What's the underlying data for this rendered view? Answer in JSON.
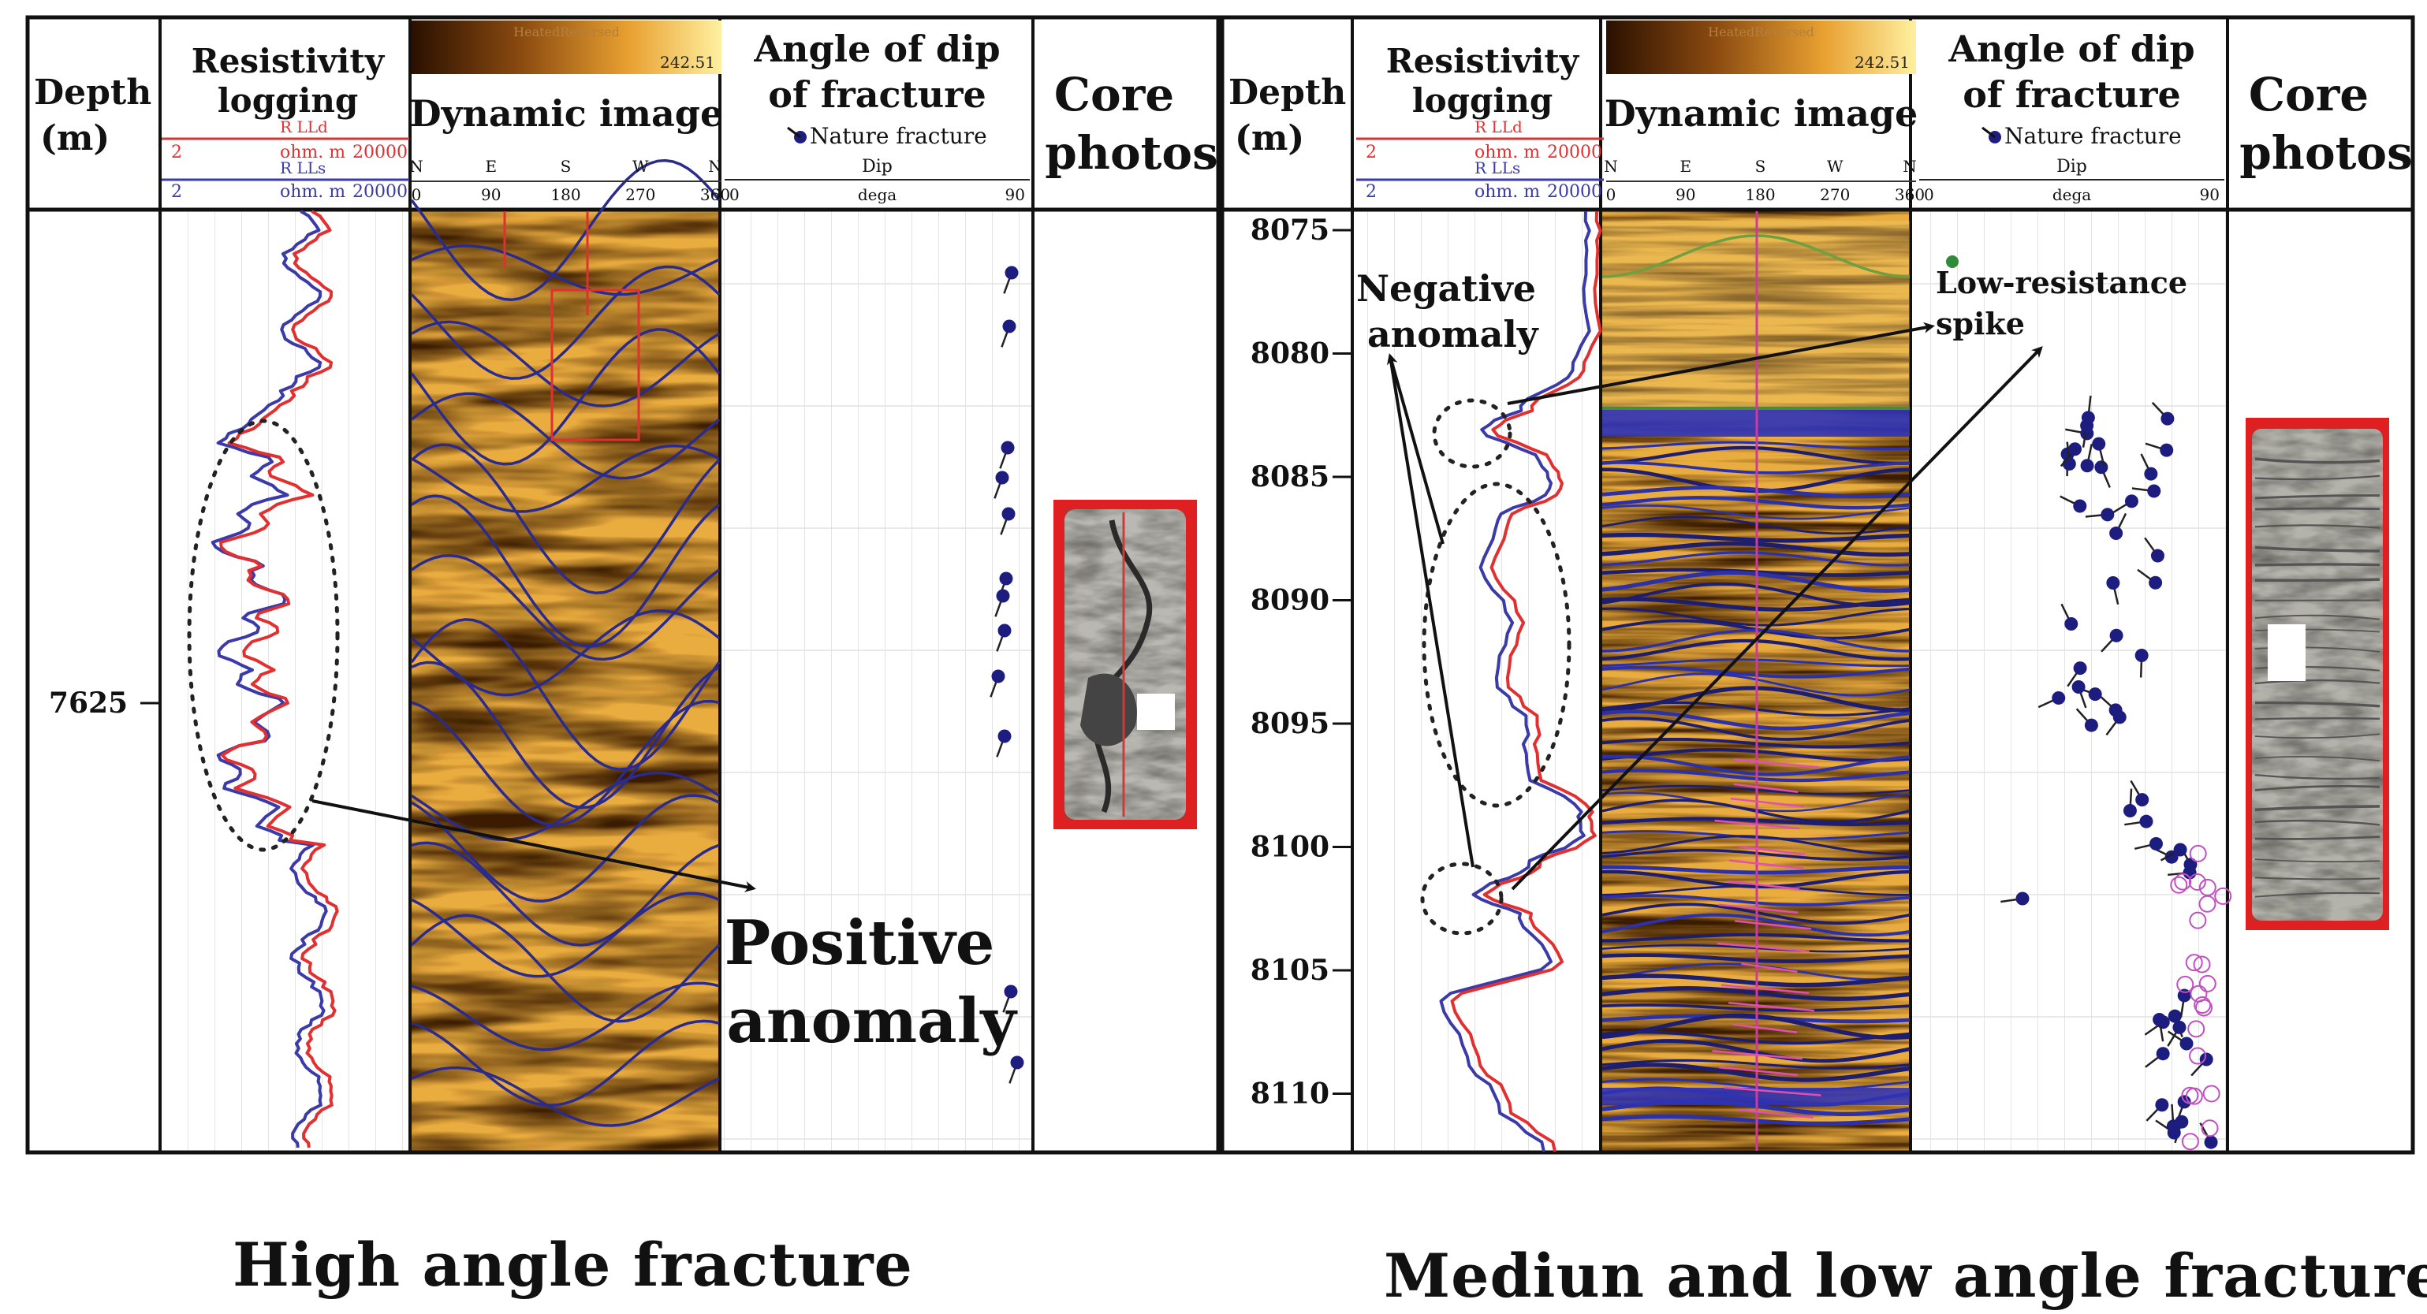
{
  "captions": {
    "left": "High angle fracture",
    "right": "Mediun and low angle fracture"
  },
  "headers": {
    "depth": [
      "Depth",
      "(m)"
    ],
    "resistivity": [
      "Resistivity",
      "logging"
    ],
    "rlld": "R LLd",
    "rlls": "R LLs",
    "ohm_min": "2",
    "ohm_unit": "ohm. m",
    "ohm_max": "20000",
    "dynamic": "Dynamic image",
    "colorbar": "HeatedReversed",
    "colorbar_max": "242.51",
    "compass": [
      "N",
      "E",
      "S",
      "W",
      "N"
    ],
    "compass_deg": [
      "0",
      "90",
      "180",
      "270",
      "360"
    ],
    "dip_title": [
      "Angle of dip",
      "of fracture"
    ],
    "dip_legend": "Nature fracture",
    "dip_label": "Dip",
    "dip_unit": "dega",
    "dip_min": "0",
    "dip_max": "90",
    "core": [
      "Core",
      "photos"
    ]
  },
  "left_depth": "7625",
  "right_depths": [
    "8075",
    "8080",
    "8085",
    "8090",
    "8095",
    "8100",
    "8105",
    "8110"
  ],
  "annotations": {
    "positive": [
      "Positive",
      "anomaly"
    ],
    "negative": [
      "Negative",
      "anomaly"
    ],
    "low_res": [
      "Low-resistance",
      "spike"
    ]
  },
  "colors": {
    "rlld": "#e23030",
    "rlls": "#3a3aa8",
    "fracture": "#1d1d80",
    "core_frame": "#e02020",
    "image_dark": "#4a2408",
    "image_light": "#f3cf72"
  }
}
